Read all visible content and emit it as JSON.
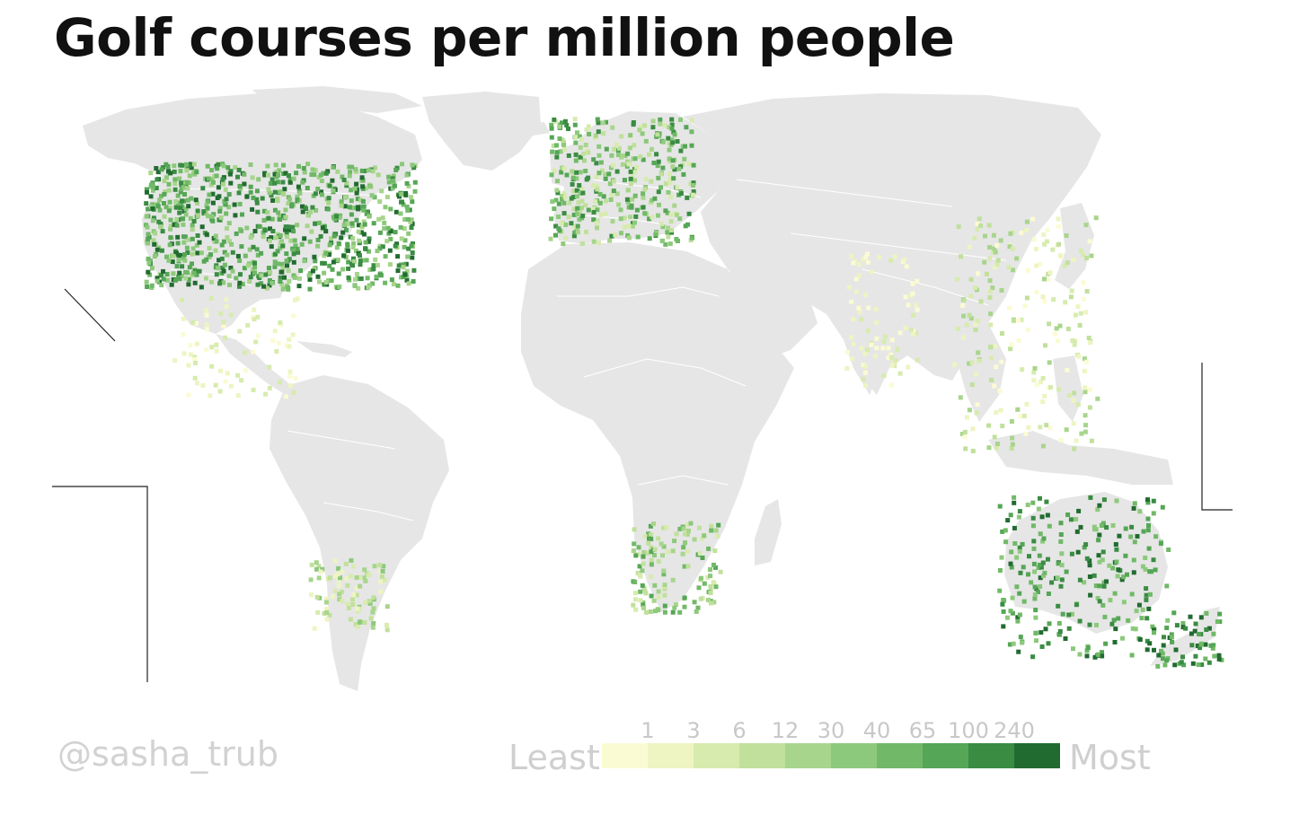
{
  "title": "Golf courses per million people",
  "credit": "@sasha_trub",
  "legend": {
    "least_label": "Least",
    "most_label": "Most",
    "thresholds": [
      "1",
      "3",
      "6",
      "12",
      "30",
      "40",
      "65",
      "100",
      "240"
    ],
    "colors": [
      "#fbfbd3",
      "#eef4c2",
      "#d7ebae",
      "#c1e09c",
      "#a8d58c",
      "#8dc97c",
      "#71b968",
      "#55a656",
      "#3a8c43",
      "#226b30"
    ]
  },
  "colors": {
    "land": "#e6e6e6",
    "border": "#ffffff",
    "background": "#ffffff"
  }
}
